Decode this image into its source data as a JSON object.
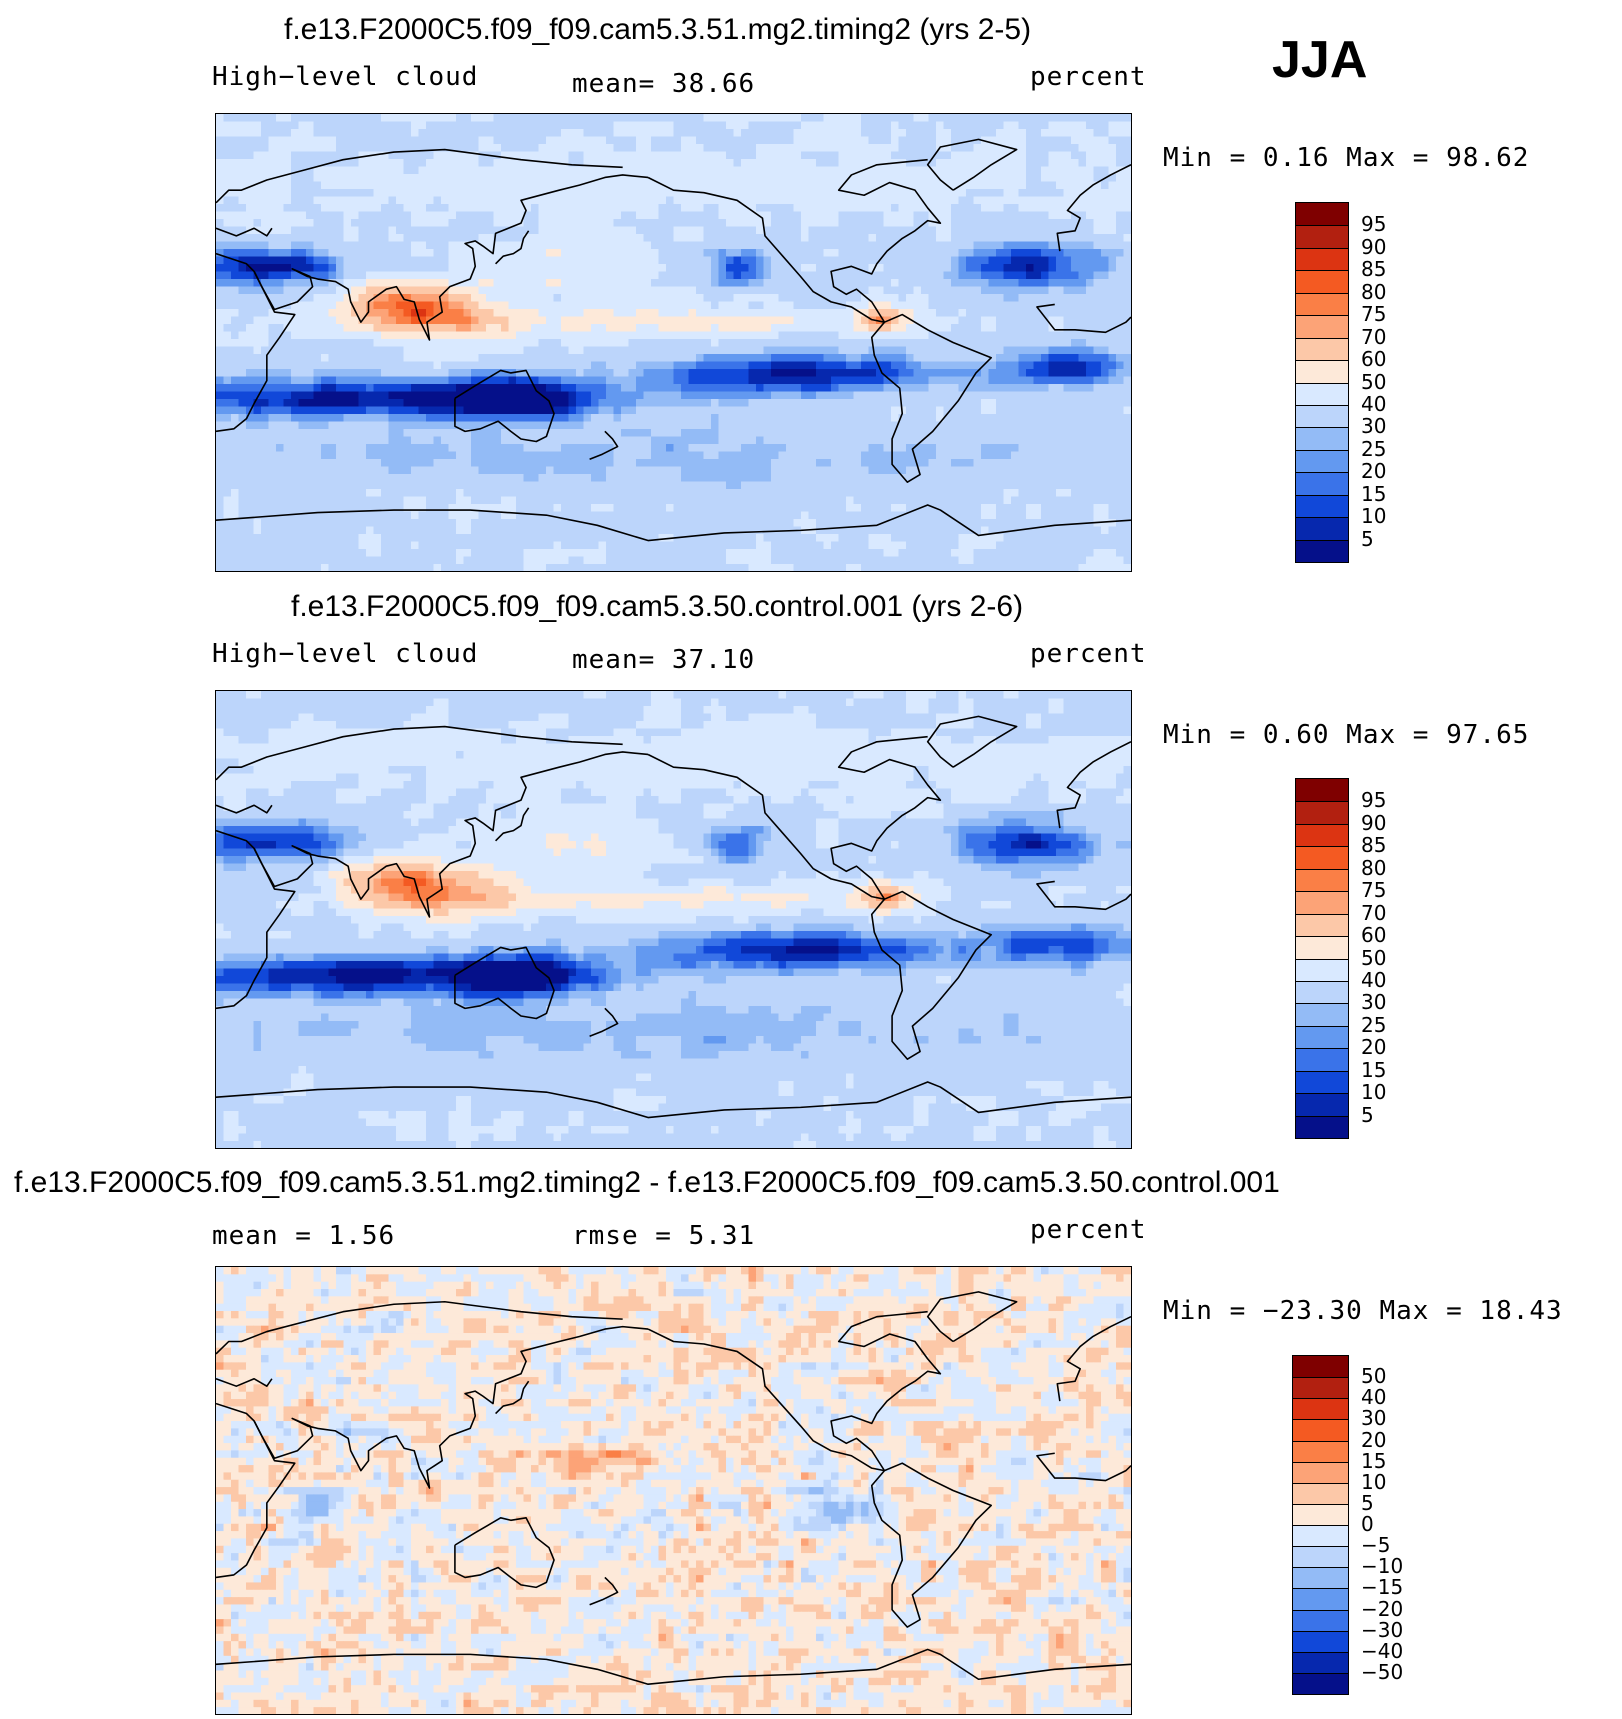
{
  "season": "JJA",
  "panels": [
    {
      "title": "f.e13.F2000C5.f09_f09.cam5.3.51.mg2.timing2 (yrs 2-5)",
      "left_label": "High−level cloud",
      "center_label": "mean=   38.66",
      "units": "percent",
      "minmax": "Min =    0.16 Max =   98.62",
      "colorbar_labels": [
        "95",
        "90",
        "85",
        "80",
        "75",
        "70",
        "60",
        "50",
        "40",
        "30",
        "25",
        "20",
        "15",
        "10",
        "5"
      ],
      "field": "abs"
    },
    {
      "title": "f.e13.F2000C5.f09_f09.cam5.3.50.control.001 (yrs 2-6)",
      "left_label": "High−level cloud",
      "center_label": "mean=   37.10",
      "units": "percent",
      "minmax": "Min =    0.60 Max =   97.65",
      "colorbar_labels": [
        "95",
        "90",
        "85",
        "80",
        "75",
        "70",
        "60",
        "50",
        "40",
        "30",
        "25",
        "20",
        "15",
        "10",
        "5"
      ],
      "field": "abs"
    },
    {
      "title": "f.e13.F2000C5.f09_f09.cam5.3.51.mg2.timing2 - f.e13.F2000C5.f09_f09.cam5.3.50.control.001",
      "left_label": "mean =    1.56",
      "center_label": "rmse =    5.31",
      "units": "percent",
      "minmax": "Min = −23.30 Max =   18.43",
      "colorbar_labels": [
        "50",
        "40",
        "30",
        "20",
        "15",
        "10",
        "5",
        "0",
        "−5",
        "−10",
        "−15",
        "−20",
        "−30",
        "−40",
        "−50"
      ],
      "field": "diff"
    }
  ],
  "colors": {
    "palette": [
      "#7f0000",
      "#b22010",
      "#dc3412",
      "#f45a22",
      "#fa7f46",
      "#fca377",
      "#fcc8a8",
      "#fde9d9",
      "#d9e9ff",
      "#bcd5fb",
      "#93bbf6",
      "#6399f0",
      "#3a73e9",
      "#1148d9",
      "#0628ae",
      "#05108a"
    ],
    "coastline": "#000000"
  }
}
